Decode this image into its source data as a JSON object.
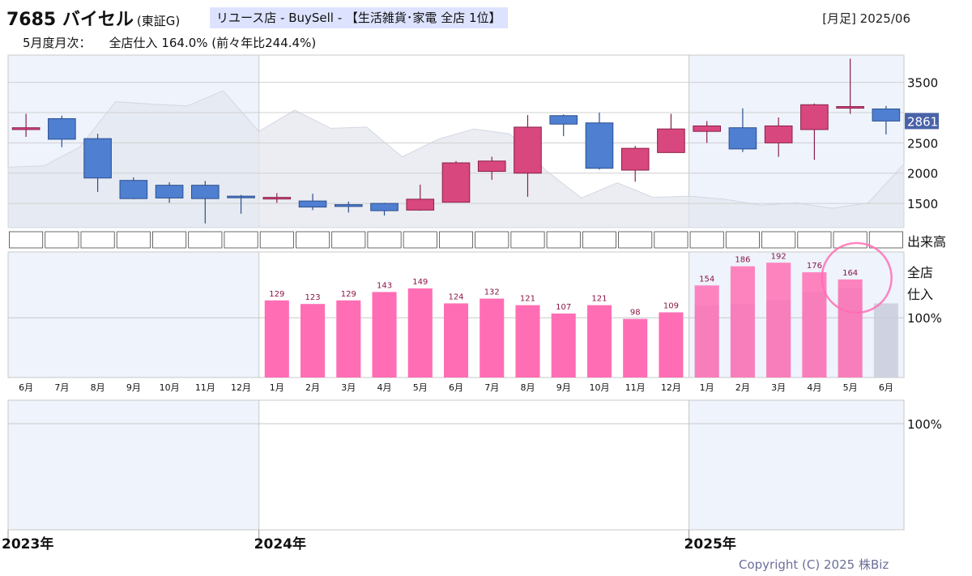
{
  "header": {
    "code": "7685",
    "name": "バイセル",
    "exchange": "(東証G)",
    "tag": "リユース店 - BuySell - 【生活雑貨･家電 全店 1位】",
    "period": "[月足] 2025/06",
    "sub_label": "5月度月次：",
    "sub_value": "全店仕入 164.0% (前々年比244.4%)"
  },
  "copyright": "Copyright (C) 2025 株Biz",
  "colors": {
    "up_candle": "#d9477f",
    "down_candle": "#4f7fd1",
    "bar": "#ff6eb4",
    "prev_bar": "#c9ccdc",
    "shade": "#eef3fc",
    "price_tag": "#4a63a8"
  },
  "chart_data": [
    {
      "type": "candlestick",
      "title": "",
      "months": [
        "6月",
        "7月",
        "8月",
        "9月",
        "10月",
        "11月",
        "12月",
        "1月",
        "2月",
        "3月",
        "4月",
        "5月",
        "6月",
        "7月",
        "8月",
        "9月",
        "10月",
        "11月",
        "12月",
        "1月",
        "2月",
        "3月",
        "4月",
        "5月",
        "6月"
      ],
      "years": [
        {
          "label": "2023年",
          "index": 0
        },
        {
          "label": "2024年",
          "index": 7
        },
        {
          "label": "2025年",
          "index": 19
        }
      ],
      "ohlc": [
        [
          2720,
          2980,
          2600,
          2750
        ],
        [
          2900,
          2950,
          2430,
          2560
        ],
        [
          2570,
          2650,
          1690,
          1920
        ],
        [
          1880,
          1930,
          1570,
          1580
        ],
        [
          1800,
          1850,
          1510,
          1590
        ],
        [
          1800,
          1870,
          1170,
          1580
        ],
        [
          1620,
          1640,
          1330,
          1600
        ],
        [
          1580,
          1670,
          1510,
          1600
        ],
        [
          1540,
          1660,
          1390,
          1440
        ],
        [
          1480,
          1530,
          1350,
          1450
        ],
        [
          1500,
          1510,
          1300,
          1380
        ],
        [
          1390,
          1810,
          1380,
          1570
        ],
        [
          1520,
          2200,
          1520,
          2170
        ],
        [
          2030,
          2270,
          1890,
          2200
        ],
        [
          2000,
          2960,
          1610,
          2760
        ],
        [
          2950,
          2970,
          2610,
          2810
        ],
        [
          2830,
          3000,
          2060,
          2080
        ],
        [
          2050,
          2450,
          1860,
          2410
        ],
        [
          2340,
          2980,
          2340,
          2730
        ],
        [
          2690,
          2860,
          2500,
          2780
        ],
        [
          2750,
          3070,
          2350,
          2400
        ],
        [
          2500,
          2920,
          2270,
          2780
        ],
        [
          2720,
          3150,
          2220,
          3130
        ],
        [
          3080,
          3890,
          2980,
          3100
        ],
        [
          3060,
          3110,
          2640,
          2861
        ]
      ],
      "y_ticks": [
        1500,
        2000,
        2500,
        3000,
        3500
      ],
      "ylim": [
        1100,
        3950
      ],
      "last_price": "2861",
      "area": [
        2100,
        2120,
        2430,
        3180,
        3140,
        3110,
        3360,
        2690,
        3040,
        2740,
        2760,
        2270,
        2560,
        2730,
        2650,
        2050,
        1590,
        1840,
        1600,
        1620,
        1570,
        1470,
        1510,
        1420,
        1510,
        2150
      ]
    },
    {
      "type": "table",
      "label": "出来高",
      "cells": 25
    },
    {
      "type": "bar",
      "label_lines": [
        "全店",
        "仕入"
      ],
      "ref_label": "100%",
      "categories": [
        "1月",
        "2月",
        "3月",
        "4月",
        "5月",
        "6月",
        "7月",
        "8月",
        "9月",
        "10月",
        "11月",
        "12月",
        "1月",
        "2月",
        "3月",
        "4月",
        "5月"
      ],
      "start_index": 7,
      "values": [
        129,
        123,
        129,
        143,
        149,
        124,
        132,
        121,
        107,
        121,
        98,
        109,
        154,
        186,
        192,
        176,
        164
      ],
      "prev_year": [
        121,
        123,
        129,
        143,
        149,
        124
      ],
      "ylim": [
        0,
        210
      ],
      "highlight_index": 16
    },
    {
      "type": "bar",
      "ref_label": "100%",
      "values": []
    }
  ]
}
